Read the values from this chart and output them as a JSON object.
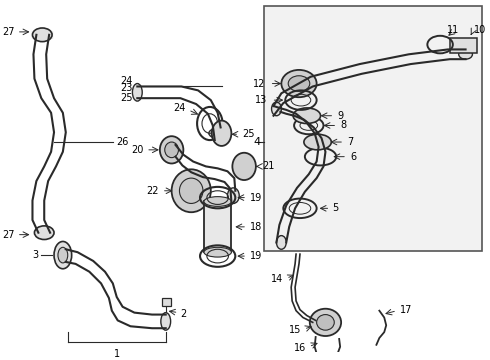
{
  "bg_color": "#ffffff",
  "line_color": "#2a2a2a",
  "text_color": "#000000",
  "box_bg": "#f2f2f2",
  "font_size": 7.0,
  "figw": 4.9,
  "figh": 3.6,
  "dpi": 100
}
